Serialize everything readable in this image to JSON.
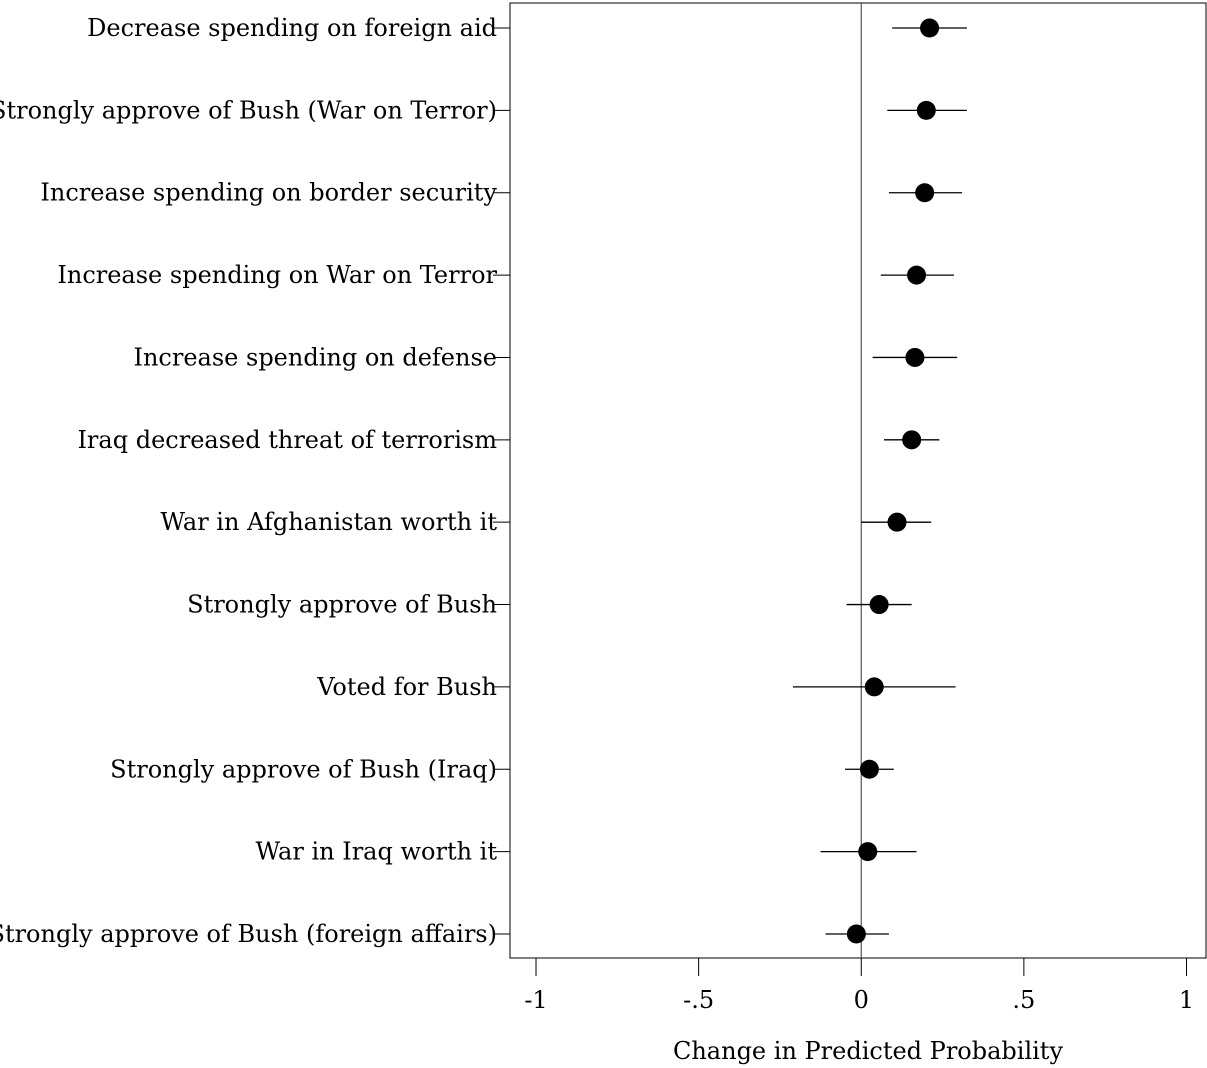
{
  "chart_data": {
    "type": "scatter",
    "xlabel": "Change in Predicted Probability",
    "xlim": [
      -1.08,
      1.06
    ],
    "xticks": [
      {
        "value": -1,
        "label": "-1"
      },
      {
        "value": -0.5,
        "label": "-.5"
      },
      {
        "value": 0,
        "label": "0"
      },
      {
        "value": 0.5,
        "label": ".5"
      },
      {
        "value": 1,
        "label": "1"
      }
    ],
    "reference_line": 0,
    "grid": false,
    "marker_color": "#000000",
    "points": [
      {
        "label": "Decrease spending on foreign aid",
        "estimate": 0.21,
        "lower": 0.095,
        "upper": 0.325
      },
      {
        "label": "Strongly approve of Bush (War on Terror)",
        "estimate": 0.2,
        "lower": 0.08,
        "upper": 0.325
      },
      {
        "label": "Increase spending on border security",
        "estimate": 0.195,
        "lower": 0.085,
        "upper": 0.31
      },
      {
        "label": "Increase spending on War on Terror",
        "estimate": 0.17,
        "lower": 0.06,
        "upper": 0.285
      },
      {
        "label": "Increase spending on defense",
        "estimate": 0.165,
        "lower": 0.035,
        "upper": 0.295
      },
      {
        "label": "Iraq decreased threat of terrorism",
        "estimate": 0.155,
        "lower": 0.07,
        "upper": 0.24
      },
      {
        "label": "War in Afghanistan worth it",
        "estimate": 0.11,
        "lower": 0.0,
        "upper": 0.215
      },
      {
        "label": "Strongly approve of Bush",
        "estimate": 0.055,
        "lower": -0.045,
        "upper": 0.155
      },
      {
        "label": "Voted for Bush",
        "estimate": 0.04,
        "lower": -0.21,
        "upper": 0.29
      },
      {
        "label": "Strongly approve of Bush (Iraq)",
        "estimate": 0.025,
        "lower": -0.05,
        "upper": 0.1
      },
      {
        "label": "War in Iraq worth it",
        "estimate": 0.02,
        "lower": -0.125,
        "upper": 0.17
      },
      {
        "label": "Strongly approve of Bush (foreign affairs)",
        "estimate": -0.015,
        "lower": -0.11,
        "upper": 0.085
      }
    ]
  }
}
